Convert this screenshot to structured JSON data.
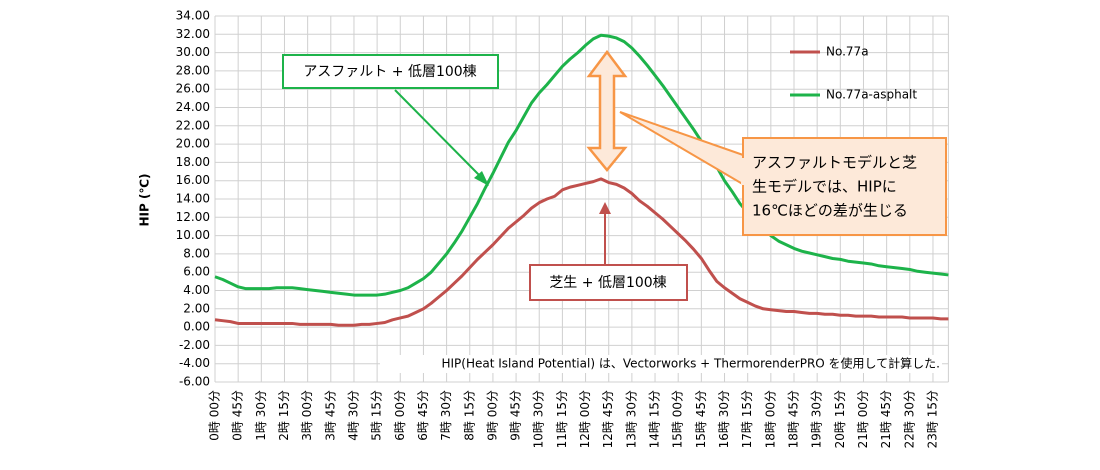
{
  "chart_data": {
    "type": "line",
    "y_label": "HIP (℃)",
    "categories": [
      "0時 00分",
      null,
      null,
      "0時 45分",
      null,
      null,
      "1時 30分",
      null,
      null,
      "2時 15分",
      null,
      null,
      "3時 00分",
      null,
      null,
      "3時 45分",
      null,
      null,
      "4時 30分",
      null,
      null,
      "5時 15分",
      null,
      null,
      "6時 00分",
      null,
      null,
      "6時 45分",
      null,
      null,
      "7時 30分",
      null,
      null,
      "8時 15分",
      null,
      null,
      "9時 00分",
      null,
      null,
      "9時 45分",
      null,
      null,
      "10時 30分",
      null,
      null,
      "11時 15分",
      null,
      null,
      "12時 00分",
      null,
      null,
      "12時 45分",
      null,
      null,
      "13時 30分",
      null,
      null,
      "14時 15分",
      null,
      null,
      "15時 00分",
      null,
      null,
      "15時 45分",
      null,
      null,
      "16時 30分",
      null,
      null,
      "17時 15分",
      null,
      null,
      "18時 00分",
      null,
      null,
      "18時 45分",
      null,
      null,
      "19時 30分",
      null,
      null,
      "20時 15分",
      null,
      null,
      "21時 00分",
      null,
      null,
      "21時 45分",
      null,
      null,
      "22時 30分",
      null,
      null,
      "23時 15分",
      null,
      null
    ],
    "series": [
      {
        "name": "No.77a",
        "color": "#c0504d",
        "values": [
          0.8,
          0.7,
          0.6,
          0.4,
          0.4,
          0.4,
          0.4,
          0.4,
          0.4,
          0.4,
          0.4,
          0.3,
          0.3,
          0.3,
          0.3,
          0.3,
          0.2,
          0.2,
          0.2,
          0.3,
          0.3,
          0.4,
          0.5,
          0.8,
          1.0,
          1.2,
          1.6,
          2.0,
          2.6,
          3.3,
          4.0,
          4.8,
          5.6,
          6.5,
          7.4,
          8.2,
          9.0,
          9.9,
          10.8,
          11.5,
          12.2,
          13.0,
          13.6,
          14.0,
          14.3,
          15.0,
          15.3,
          15.5,
          15.7,
          15.9,
          16.2,
          15.8,
          15.6,
          15.2,
          14.6,
          13.8,
          13.2,
          12.5,
          11.8,
          11.0,
          10.2,
          9.4,
          8.5,
          7.5,
          6.2,
          5.0,
          4.3,
          3.7,
          3.1,
          2.7,
          2.3,
          2.0,
          1.9,
          1.8,
          1.7,
          1.7,
          1.6,
          1.5,
          1.5,
          1.4,
          1.4,
          1.3,
          1.3,
          1.2,
          1.2,
          1.2,
          1.1,
          1.1,
          1.1,
          1.1,
          1.0,
          1.0,
          1.0,
          1.0,
          0.9,
          0.9
        ]
      },
      {
        "name": "No.77a-asphalt",
        "color": "#1db34a",
        "values": [
          5.5,
          5.2,
          4.8,
          4.4,
          4.2,
          4.2,
          4.2,
          4.2,
          4.3,
          4.3,
          4.3,
          4.2,
          4.1,
          4.0,
          3.9,
          3.8,
          3.7,
          3.6,
          3.5,
          3.5,
          3.5,
          3.5,
          3.6,
          3.8,
          4.0,
          4.3,
          4.8,
          5.3,
          6.0,
          7.0,
          8.0,
          9.2,
          10.5,
          12.0,
          13.5,
          15.2,
          16.8,
          18.5,
          20.2,
          21.5,
          23.0,
          24.5,
          25.6,
          26.5,
          27.5,
          28.5,
          29.3,
          30.0,
          30.8,
          31.5,
          31.9,
          31.8,
          31.6,
          31.2,
          30.5,
          29.6,
          28.6,
          27.5,
          26.4,
          25.2,
          24.0,
          22.8,
          21.6,
          20.3,
          19.0,
          17.5,
          16.0,
          14.8,
          13.5,
          12.5,
          11.5,
          10.7,
          10.0,
          9.4,
          9.0,
          8.6,
          8.3,
          8.1,
          7.9,
          7.7,
          7.5,
          7.4,
          7.2,
          7.1,
          7.0,
          6.9,
          6.7,
          6.6,
          6.5,
          6.4,
          6.3,
          6.1,
          6.0,
          5.9,
          5.8,
          5.7
        ]
      }
    ],
    "ylim": [
      -6,
      34
    ],
    "yticks": [
      {
        "value": 34,
        "label": "34.00"
      },
      {
        "value": 32,
        "label": "32.00"
      },
      {
        "value": 30,
        "label": "30.00"
      },
      {
        "value": 28,
        "label": "28.00"
      },
      {
        "value": 26,
        "label": "26.00"
      },
      {
        "value": 24,
        "label": "24.00"
      },
      {
        "value": 22,
        "label": "22.00"
      },
      {
        "value": 20,
        "label": "20.00"
      },
      {
        "value": 18,
        "label": "18.00"
      },
      {
        "value": 16,
        "label": "16.00"
      },
      {
        "value": 14,
        "label": "14.00"
      },
      {
        "value": 12,
        "label": "12.00"
      },
      {
        "value": 10,
        "label": "10.00"
      },
      {
        "value": 8,
        "label": "8.00"
      },
      {
        "value": 6,
        "label": "6.00"
      },
      {
        "value": 4,
        "label": "4.00"
      },
      {
        "value": 2,
        "label": "2.00"
      },
      {
        "value": 0,
        "label": "0.00"
      },
      {
        "value": -2,
        "label": "-2.00"
      },
      {
        "value": -4,
        "label": "-4.00"
      },
      {
        "value": -6,
        "label": "-6.00"
      }
    ],
    "grid": true,
    "legend": "upper right",
    "annotations": {
      "asphalt": "アスファルト + 低層100棟",
      "lawn": "芝生 + 低層100棟",
      "difference": [
        "アスファルトモデルと芝",
        "生モデルでは、HIPに",
        "16℃ほどの差が生じる"
      ],
      "note": "HIP(Heat Island Potential) は、Vectorworks + ThermorenderPRO を使用して計算した."
    }
  }
}
